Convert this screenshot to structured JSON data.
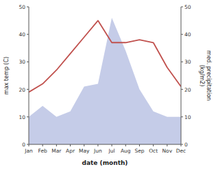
{
  "chart_data": {
    "type": "line",
    "categories": [
      "Jan",
      "Feb",
      "Mar",
      "Apr",
      "May",
      "Jun",
      "Jul",
      "Aug",
      "Sep",
      "Oct",
      "Nov",
      "Dec"
    ],
    "series": [
      {
        "type": "area",
        "axis": "y2",
        "color": "#c5cce8",
        "values": [
          10,
          14,
          10,
          12,
          21,
          22,
          46,
          34,
          20,
          12,
          10,
          10
        ]
      },
      {
        "type": "line",
        "color": "#c0504d",
        "values": [
          19,
          22,
          27,
          33,
          39,
          45,
          37,
          37,
          38,
          37,
          28,
          21
        ]
      }
    ],
    "x_label": "date (month)",
    "y_label": "max temp (C)",
    "y2_label": "med. precipitation\n(kg/m2)",
    "ylim": [
      0,
      50
    ],
    "yticks": [
      0,
      10,
      20,
      30,
      40,
      50
    ],
    "y2lim": [
      0,
      50
    ],
    "y2ticks": [
      0,
      10,
      20,
      30,
      40,
      50
    ],
    "grid": false
  }
}
